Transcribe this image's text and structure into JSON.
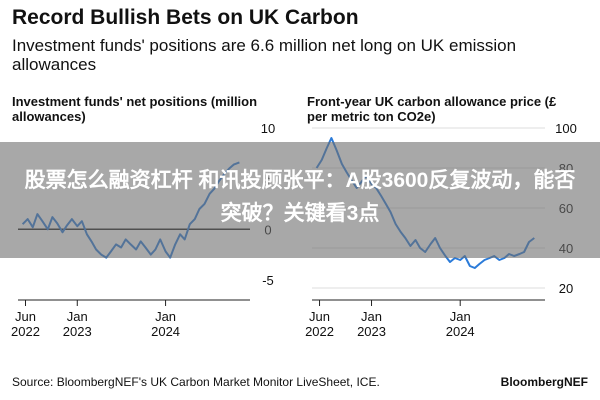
{
  "header": {
    "title": "Record Bullish Bets on UK Carbon",
    "subtitle": "Investment funds' positions are 6.6 million net long on UK emission allowances"
  },
  "overlay": {
    "headline": "股票怎么融资杠杆 和讯投顾张平：A股3600反复波动，能否突破？关键看3点"
  },
  "footer": {
    "source": "Source: BloombergNEF's UK Carbon Market Monitor LiveSheet, ICE.",
    "brand": "BloombergNEF"
  },
  "colors": {
    "line": "#2b7bd9",
    "zero_line": "#222222",
    "grid": "#dddddd"
  },
  "chart_data": [
    {
      "type": "line",
      "title": "Investment funds' net positions (million allowances)",
      "x_ticks": [
        {
          "date": "2022-06-01",
          "label": [
            "Jun",
            "2022"
          ]
        },
        {
          "date": "2023-01-01",
          "label": [
            "Jan",
            "2023"
          ]
        },
        {
          "date": "2024-01-01",
          "label": [
            "Jan",
            "2024"
          ]
        }
      ],
      "xlim": [
        "2022-05-01",
        "2024-12-15"
      ],
      "y_ticks": [
        10,
        5,
        0,
        -5
      ],
      "ylim": [
        -6,
        10
      ],
      "y_axis_side": "right",
      "zero_line": true,
      "series": [
        {
          "x": [
            "2022-05-20",
            "2022-06-10",
            "2022-07-01",
            "2022-07-20",
            "2022-08-10",
            "2022-09-01",
            "2022-09-20",
            "2022-10-10",
            "2022-11-01",
            "2022-11-20",
            "2022-12-10",
            "2023-01-01",
            "2023-01-20",
            "2023-02-10",
            "2023-03-01",
            "2023-03-20",
            "2023-04-10",
            "2023-05-01",
            "2023-05-20",
            "2023-06-10",
            "2023-07-01",
            "2023-07-20",
            "2023-08-10",
            "2023-09-01",
            "2023-09-20",
            "2023-10-10",
            "2023-11-01",
            "2023-11-20",
            "2023-12-10",
            "2024-01-01",
            "2024-01-20",
            "2024-02-10",
            "2024-03-01",
            "2024-03-20",
            "2024-04-10",
            "2024-05-01",
            "2024-05-20",
            "2024-06-10",
            "2024-07-01",
            "2024-07-20",
            "2024-08-10",
            "2024-09-01",
            "2024-09-20",
            "2024-10-10",
            "2024-11-01"
          ],
          "y": [
            0.5,
            1.0,
            0.2,
            1.5,
            0.8,
            0.0,
            1.2,
            0.6,
            -0.3,
            0.4,
            1.0,
            0.3,
            0.8,
            -0.5,
            -1.2,
            -2.0,
            -2.5,
            -2.8,
            -2.2,
            -1.5,
            -1.8,
            -1.0,
            -1.5,
            -2.0,
            -1.2,
            -1.8,
            -2.5,
            -2.0,
            -1.0,
            -2.2,
            -2.8,
            -1.5,
            -0.5,
            -1.0,
            0.5,
            1.0,
            2.0,
            2.5,
            3.5,
            4.0,
            4.8,
            5.5,
            6.0,
            6.4,
            6.6
          ]
        }
      ]
    },
    {
      "type": "line",
      "title": "Front-year UK carbon allowance price (£ per metric ton CO2e)",
      "x_ticks": [
        {
          "date": "2022-06-01",
          "label": [
            "Jun",
            "2022"
          ]
        },
        {
          "date": "2023-01-01",
          "label": [
            "Jan",
            "2023"
          ]
        },
        {
          "date": "2024-01-01",
          "label": [
            "Jan",
            "2024"
          ]
        }
      ],
      "xlim": [
        "2022-05-01",
        "2024-12-15"
      ],
      "y_ticks": [
        100,
        80,
        60,
        40,
        20
      ],
      "ylim": [
        20,
        100
      ],
      "y_axis_side": "right",
      "grid": true,
      "series": [
        {
          "x": [
            "2022-05-20",
            "2022-06-10",
            "2022-07-01",
            "2022-07-20",
            "2022-08-10",
            "2022-09-01",
            "2022-09-20",
            "2022-10-10",
            "2022-11-01",
            "2022-11-20",
            "2022-12-10",
            "2023-01-01",
            "2023-01-20",
            "2023-02-10",
            "2023-03-01",
            "2023-03-20",
            "2023-04-10",
            "2023-05-01",
            "2023-05-20",
            "2023-06-10",
            "2023-07-01",
            "2023-07-20",
            "2023-08-10",
            "2023-09-01",
            "2023-09-20",
            "2023-10-10",
            "2023-11-01",
            "2023-11-20",
            "2023-12-10",
            "2024-01-01",
            "2024-01-20",
            "2024-02-10",
            "2024-03-01",
            "2024-03-20",
            "2024-04-10",
            "2024-05-01",
            "2024-05-20",
            "2024-06-10",
            "2024-07-01",
            "2024-07-20",
            "2024-08-10",
            "2024-09-01",
            "2024-09-20",
            "2024-10-10",
            "2024-11-01"
          ],
          "y": [
            80,
            84,
            90,
            95,
            89,
            82,
            78,
            74,
            70,
            73,
            76,
            72,
            70,
            66,
            62,
            58,
            52,
            48,
            45,
            41,
            44,
            40,
            38,
            42,
            45,
            40,
            36,
            33,
            35,
            34,
            36,
            31,
            30,
            32,
            34,
            35,
            36,
            34,
            35,
            37,
            36,
            37,
            38,
            43,
            45
          ]
        }
      ]
    }
  ]
}
